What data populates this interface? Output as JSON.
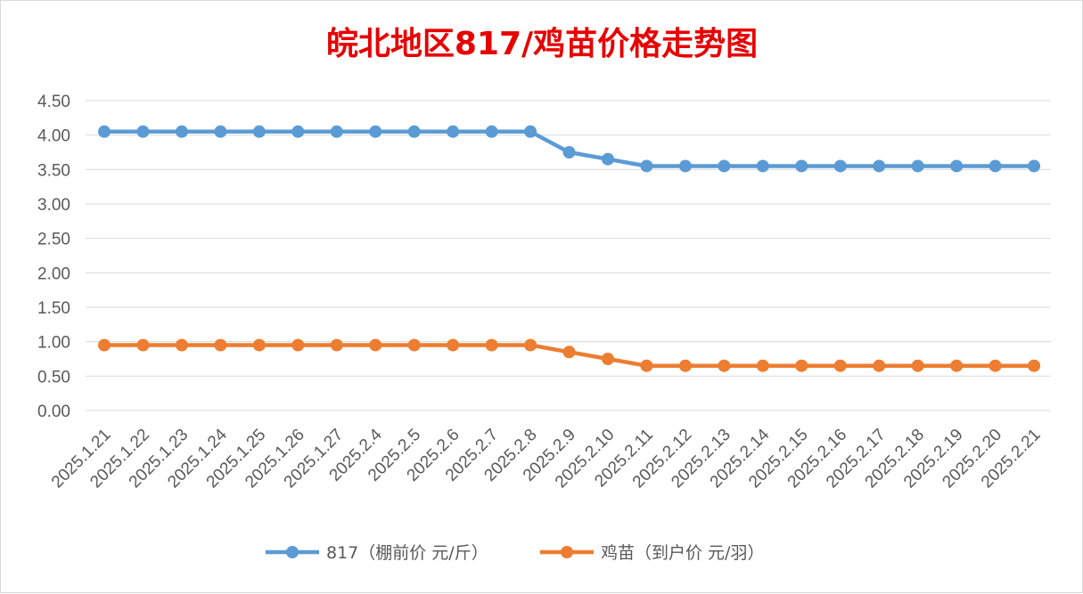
{
  "chart_data": {
    "type": "line",
    "title": "皖北地区817/鸡苗价格走势图",
    "xlabel": "",
    "ylabel": "",
    "ylim": [
      0,
      4.5
    ],
    "ytick_step": 0.5,
    "yticks": [
      "0.00",
      "0.50",
      "1.00",
      "1.50",
      "2.00",
      "2.50",
      "3.00",
      "3.50",
      "4.00",
      "4.50"
    ],
    "grid": true,
    "legend_position": "bottom",
    "categories": [
      "2025.1.21",
      "2025.1.22",
      "2025.1.23",
      "2025.1.24",
      "2025.1.25",
      "2025.1.26",
      "2025.1.27",
      "2025.2.4",
      "2025.2.5",
      "2025.2.6",
      "2025.2.7",
      "2025.2.8",
      "2025.2.9",
      "2025.2.10",
      "2025.2.11",
      "2025.2.12",
      "2025.2.13",
      "2025.2.14",
      "2025.2.15",
      "2025.2.16",
      "2025.2.17",
      "2025.2.18",
      "2025.2.19",
      "2025.2.20",
      "2025.2.21"
    ],
    "series": [
      {
        "name": "817（棚前价 元/斤）",
        "color": "#5b9bd5",
        "values": [
          4.05,
          4.05,
          4.05,
          4.05,
          4.05,
          4.05,
          4.05,
          4.05,
          4.05,
          4.05,
          4.05,
          4.05,
          3.75,
          3.65,
          3.55,
          3.55,
          3.55,
          3.55,
          3.55,
          3.55,
          3.55,
          3.55,
          3.55,
          3.55,
          3.55
        ]
      },
      {
        "name": "鸡苗（到户价 元/羽）",
        "color": "#ed7d31",
        "values": [
          0.95,
          0.95,
          0.95,
          0.95,
          0.95,
          0.95,
          0.95,
          0.95,
          0.95,
          0.95,
          0.95,
          0.95,
          0.85,
          0.75,
          0.65,
          0.65,
          0.65,
          0.65,
          0.65,
          0.65,
          0.65,
          0.65,
          0.65,
          0.65,
          0.65
        ]
      }
    ]
  }
}
